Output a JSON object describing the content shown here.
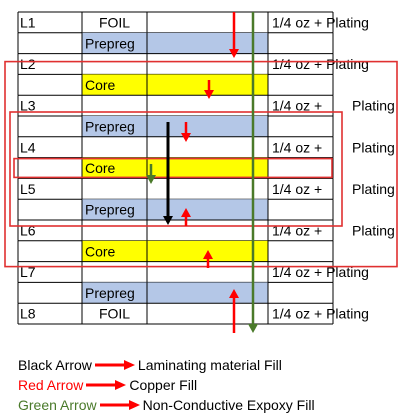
{
  "stackup": {
    "rows": [
      {
        "kind": "layer",
        "label": "L1",
        "material": "FOIL",
        "copper": "1/4 oz + Plating",
        "copper_style": "inline"
      },
      {
        "kind": "prepreg",
        "label": "",
        "material": "Prepreg"
      },
      {
        "kind": "layer",
        "label": "L2",
        "material": "",
        "copper": "1/4 oz + Plating",
        "copper_style": "inline"
      },
      {
        "kind": "core",
        "label": "",
        "material": "Core"
      },
      {
        "kind": "layer",
        "label": "L3",
        "material": "",
        "copper": "1/4 oz +",
        "plating": "Plating",
        "copper_style": "split"
      },
      {
        "kind": "prepreg",
        "label": "",
        "material": "Prepreg"
      },
      {
        "kind": "layer",
        "label": "L4",
        "material": "",
        "copper": "1/4 oz +",
        "plating": "Plating",
        "copper_style": "split"
      },
      {
        "kind": "core",
        "label": "",
        "material": "Core"
      },
      {
        "kind": "layer",
        "label": "L5",
        "material": "",
        "copper": "1/4 oz +",
        "plating": "Plating",
        "copper_style": "split"
      },
      {
        "kind": "prepreg",
        "label": "",
        "material": "Prepreg"
      },
      {
        "kind": "layer",
        "label": "L6",
        "material": "",
        "copper": "1/4 oz +",
        "plating": "Plating",
        "copper_style": "split"
      },
      {
        "kind": "core",
        "label": "",
        "material": "Core"
      },
      {
        "kind": "layer",
        "label": "L7",
        "material": "",
        "copper": "1/4 oz + Plating",
        "copper_style": "inline"
      },
      {
        "kind": "prepreg",
        "label": "",
        "material": "Prepreg"
      },
      {
        "kind": "layer",
        "label": "L8",
        "material": "FOIL",
        "copper": "1/4 oz + Plating",
        "copper_style": "inline"
      }
    ],
    "colors": {
      "prepreg": "#b4c7e7",
      "core": "#ffff00",
      "outline": "#e03030",
      "red_arrow": "#ff0000",
      "black_arrow": "#000000",
      "green_arrow": "#4a7a2a"
    }
  },
  "legend": [
    {
      "color_name": "Black Arrow",
      "meaning": "Laminating material Fill",
      "text_color": "#000000"
    },
    {
      "color_name": "Red Arrow",
      "meaning": "Copper Fill",
      "text_color": "#ff0000"
    },
    {
      "color_name": "Green Arrow",
      "meaning": "Non-Conductive Expoxy Fill",
      "text_color": "#4a7a2a"
    }
  ]
}
